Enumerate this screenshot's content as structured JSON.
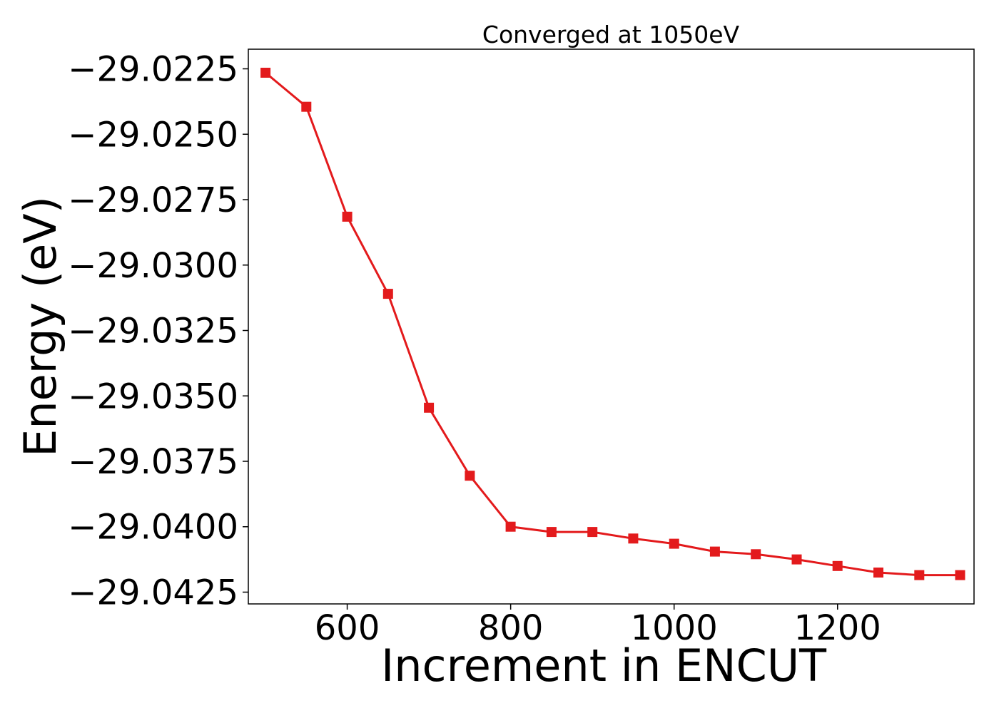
{
  "chart_data": {
    "type": "line",
    "title": "Converged at 1050eV",
    "xlabel": "Increment in ENCUT",
    "ylabel": "Energy (eV)",
    "x": [
      500,
      550,
      600,
      650,
      700,
      750,
      800,
      850,
      900,
      950,
      1000,
      1050,
      1100,
      1150,
      1200,
      1250,
      1300,
      1350
    ],
    "series": [
      {
        "name": "",
        "values": [
          -29.02265,
          -29.02395,
          -29.02815,
          -29.0311,
          -29.03545,
          -29.03805,
          -29.04,
          -29.0402,
          -29.0402,
          -29.04045,
          -29.04065,
          -29.04095,
          -29.04105,
          -29.04125,
          -29.0415,
          -29.04175,
          -29.04185,
          -29.04185
        ],
        "color": "#e31a1c",
        "marker": "square"
      }
    ],
    "xlim": [
      479,
      1367
    ],
    "ylim": [
      -29.04295,
      -29.02175
    ],
    "xticks": [
      600,
      800,
      1000,
      1200
    ],
    "xtick_labels": [
      "600",
      "800",
      "1000",
      "1200"
    ],
    "yticks": [
      -29.0225,
      -29.025,
      -29.0275,
      -29.03,
      -29.0325,
      -29.035,
      -29.0375,
      -29.04,
      -29.0425
    ],
    "ytick_labels": [
      "−29.0225",
      "−29.0250",
      "−29.0275",
      "−29.0300",
      "−29.0325",
      "−29.0350",
      "−29.0375",
      "−29.0400",
      "−29.0425"
    ],
    "grid": false,
    "legend": "none"
  }
}
